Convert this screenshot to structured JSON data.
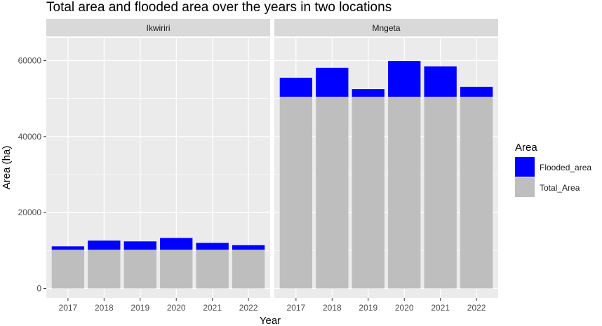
{
  "chart_data": {
    "type": "bar",
    "stacked": true,
    "title": "Total area and flooded area over the years in two locations",
    "xlabel": "Year",
    "ylabel": "Area (ha)",
    "ylim": [
      -2500,
      66000
    ],
    "yticks": [
      0,
      20000,
      40000,
      60000
    ],
    "ytick_labels": [
      "0",
      "20000",
      "40000",
      "60000"
    ],
    "grid": true,
    "legend": {
      "title": "Area",
      "placement": "right",
      "entries": [
        "Flooded_area",
        "Total_Area"
      ]
    },
    "colors": {
      "Flooded_area": "#0000ff",
      "Total_Area": "#bebebe",
      "panel_background": "#ebebeb",
      "strip_background": "#d9d9d9",
      "grid_major": "#ffffff"
    },
    "categories": [
      "2017",
      "2018",
      "2019",
      "2020",
      "2021",
      "2022"
    ],
    "facets": [
      {
        "name": "Ikwiriri",
        "series": [
          {
            "name": "Total_Area",
            "values": [
              10200,
              10200,
              10200,
              10200,
              10200,
              10200
            ]
          },
          {
            "name": "Flooded_area",
            "values": [
              900,
              2400,
              2200,
              3100,
              1800,
              1200
            ]
          }
        ]
      },
      {
        "name": "Mngeta",
        "series": [
          {
            "name": "Total_Area",
            "values": [
              50500,
              50500,
              50500,
              50500,
              50500,
              50500
            ]
          },
          {
            "name": "Flooded_area",
            "values": [
              5000,
              7600,
              2000,
              9400,
              8000,
              2600
            ]
          }
        ]
      }
    ]
  }
}
